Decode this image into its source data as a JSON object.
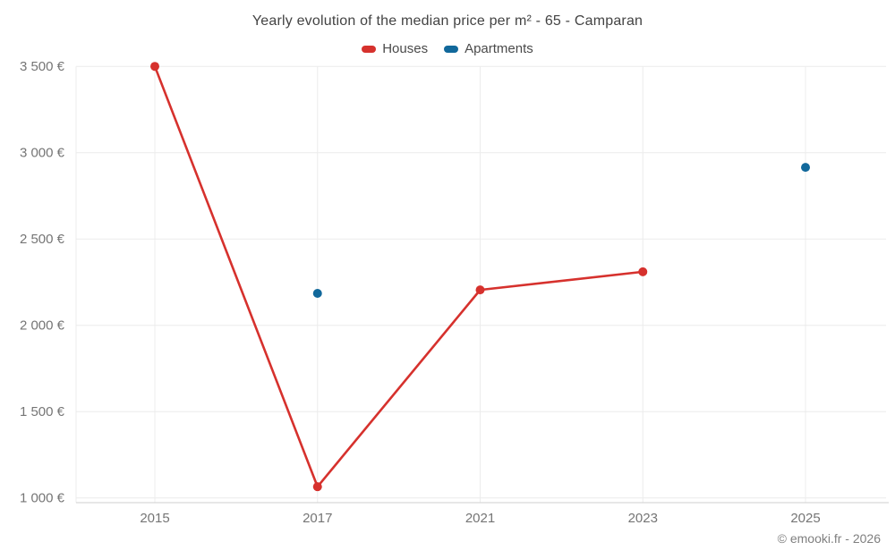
{
  "title": "Yearly evolution of the median price per m² - 65 - Camparan",
  "footer": "© emooki.fr - 2026",
  "colors": {
    "houses": "#d6312d",
    "apartments": "#11689b",
    "grid": "#ececec",
    "axis_line": "#cfcfcf",
    "tick_text": "#757575"
  },
  "chart_data": {
    "type": "line",
    "title": "Yearly evolution of the median price per m² - 65 - Camparan",
    "xlabel": "",
    "ylabel": "",
    "x_categories": [
      "2015",
      "2017",
      "2021",
      "2023",
      "2025"
    ],
    "y_ticks": [
      {
        "value": 1000,
        "label": "1 000 €"
      },
      {
        "value": 1500,
        "label": "1 500 €"
      },
      {
        "value": 2000,
        "label": "2 000 €"
      },
      {
        "value": 2500,
        "label": "2 500 €"
      },
      {
        "value": 3000,
        "label": "3 000 €"
      },
      {
        "value": 3500,
        "label": "3 500 €"
      }
    ],
    "ylim": [
      1000,
      3500
    ],
    "grid": true,
    "legend_position": "top",
    "series": [
      {
        "name": "Houses",
        "color": "#d6312d",
        "show_line": true,
        "points": [
          {
            "x": "2015",
            "y": 3500
          },
          {
            "x": "2017",
            "y": 1065
          },
          {
            "x": "2021",
            "y": 2205
          },
          {
            "x": "2023",
            "y": 2310
          }
        ]
      },
      {
        "name": "Apartments",
        "color": "#11689b",
        "show_line": false,
        "points": [
          {
            "x": "2017",
            "y": 2185
          },
          {
            "x": "2025",
            "y": 2915
          }
        ]
      }
    ]
  }
}
